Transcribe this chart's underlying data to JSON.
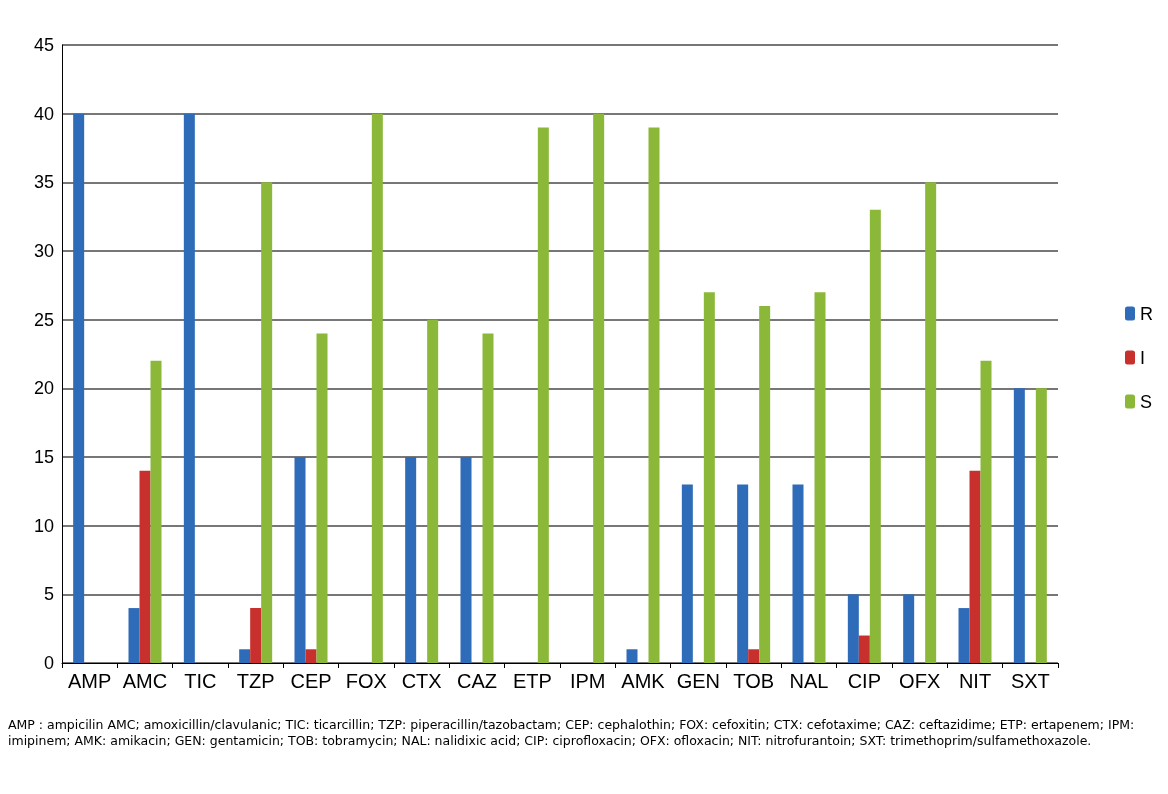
{
  "chart_data": {
    "type": "bar",
    "categories": [
      "AMP",
      "AMC",
      "TIC",
      "TZP",
      "CEP",
      "FOX",
      "CTX",
      "CAZ",
      "ETP",
      "IPM",
      "AMK",
      "GEN",
      "TOB",
      "NAL",
      "CIP",
      "OFX",
      "NIT",
      "SXT"
    ],
    "series": [
      {
        "name": "R",
        "color": "#2e6bb8",
        "values": [
          40,
          4,
          40,
          1,
          15,
          0,
          15,
          15,
          0,
          0,
          1,
          13,
          13,
          13,
          5,
          5,
          4,
          20
        ]
      },
      {
        "name": "I",
        "color": "#c8302e",
        "values": [
          0,
          14,
          0,
          4,
          1,
          0,
          0,
          0,
          0,
          0,
          0,
          0,
          1,
          0,
          2,
          0,
          14,
          0
        ]
      },
      {
        "name": "S",
        "color": "#8cb83a",
        "values": [
          0,
          22,
          0,
          35,
          24,
          40,
          25,
          24,
          39,
          40,
          39,
          27,
          26,
          27,
          33,
          35,
          22,
          20
        ]
      }
    ],
    "ylim": [
      0,
      45
    ],
    "yticks": [
      0,
      5,
      10,
      15,
      20,
      25,
      30,
      35,
      40,
      45
    ],
    "grid": "y",
    "legend": "right",
    "annotations": [
      "AMP : ampicilin AMC; amoxicillin/clavulanic; TIC: ticarcillin; TZP: piperacillin/tazobactam; CEP: cephalothin; FOX: cefoxitin; CTX: cefotaxime; CAZ: ceftazidime; ETP: ertapenem; IPM: imipinem; AMK: amikacin; GEN: gentamicin; TOB: tobramycin; NAL: nalidixic acid; CIP: ciprofloxacin; OFX: ofloxacin; NIT: nitrofurantoin; SXT: trimethoprim/sulfamethoxazole."
    ]
  }
}
